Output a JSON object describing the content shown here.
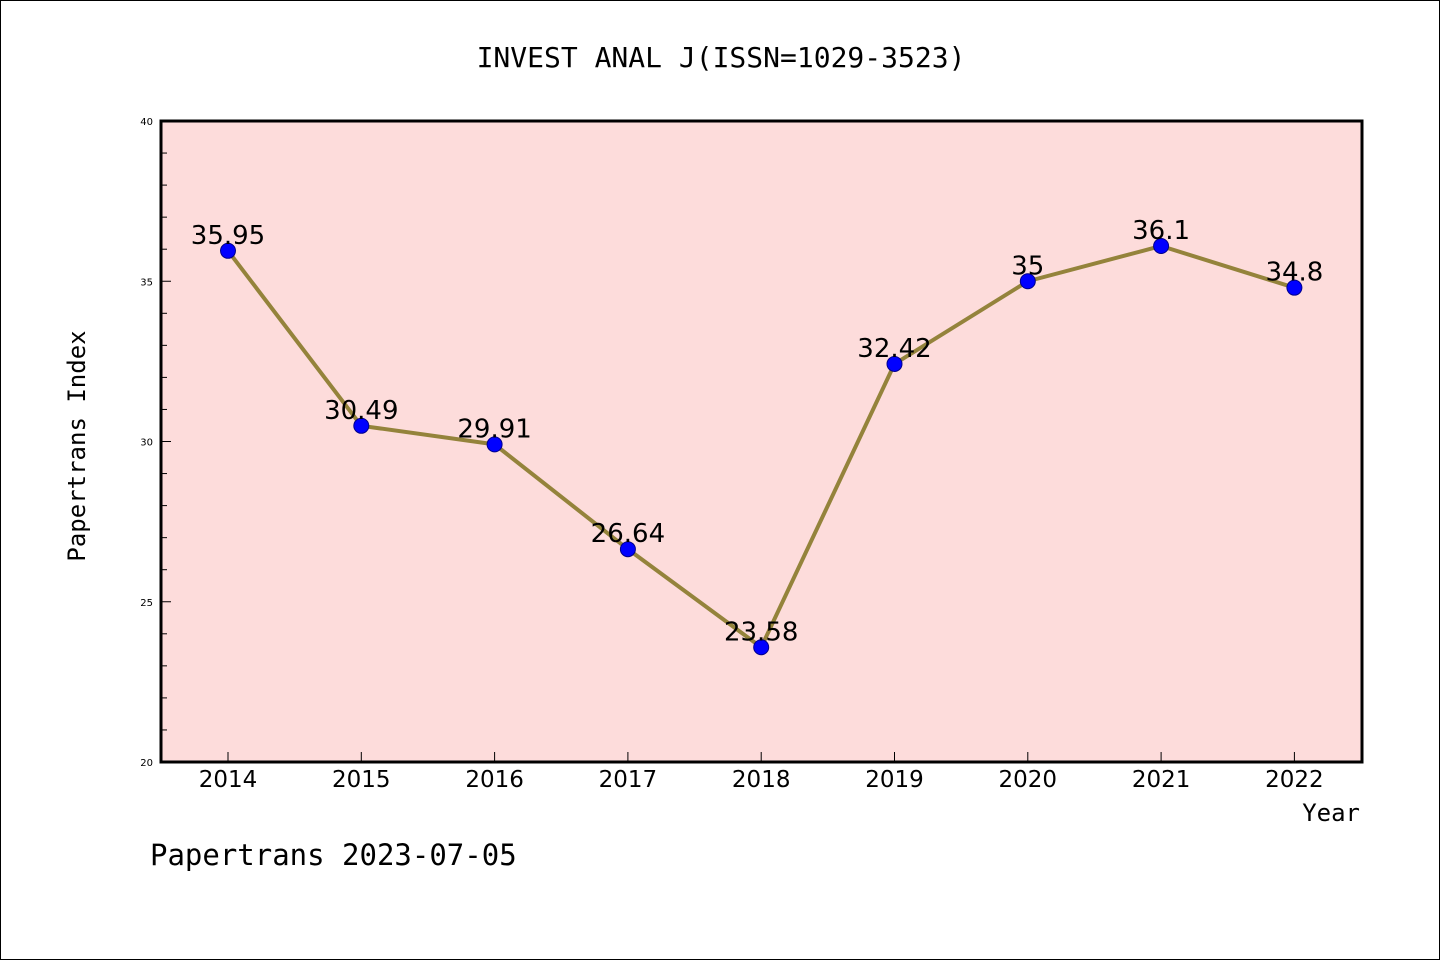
{
  "chart_data": {
    "type": "line",
    "title": "INVEST ANAL J(ISSN=1029-3523)",
    "xlabel": "Year",
    "ylabel": "Papertrans Index",
    "categories": [
      "2014",
      "2015",
      "2016",
      "2017",
      "2018",
      "2019",
      "2020",
      "2021",
      "2022"
    ],
    "values": [
      35.95,
      30.49,
      29.91,
      26.64,
      23.58,
      32.42,
      35,
      36.1,
      34.8
    ],
    "data_labels": [
      "35.95",
      "30.49",
      "29.91",
      "26.64",
      "23.58",
      "32.42",
      "35",
      "36.1",
      "34.8"
    ],
    "ylim": [
      20,
      40
    ],
    "y_ticks": [
      "20",
      "25",
      "30",
      "35",
      "40"
    ],
    "grid": false,
    "legend": "none"
  },
  "footer": "Papertrans 2023-07-05",
  "colors": {
    "plot_background": "#fddcdb",
    "line": "#94833b",
    "marker": "#0000ff",
    "marker_edge": "#00008b",
    "frame": "#000000"
  }
}
